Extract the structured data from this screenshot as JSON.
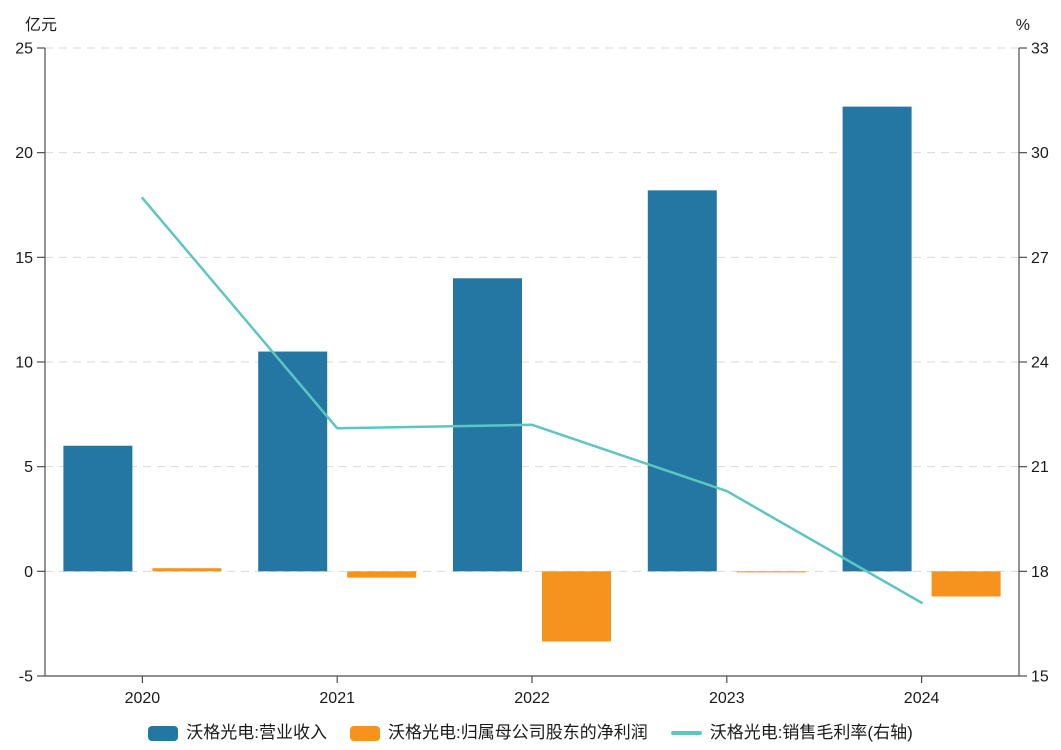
{
  "chart_data": {
    "type": "bar",
    "combo": "bar+line",
    "categories": [
      "2020",
      "2021",
      "2022",
      "2023",
      "2024"
    ],
    "series": [
      {
        "name": "沃格光电:营业收入",
        "type": "bar",
        "axis": "left",
        "color": "#2477A3",
        "values": [
          6.0,
          10.5,
          14.0,
          18.2,
          22.2
        ]
      },
      {
        "name": "沃格光电:归属母公司股东的净利润",
        "type": "bar",
        "axis": "left",
        "color": "#F6921E",
        "values": [
          0.15,
          -0.3,
          -3.35,
          -0.05,
          -1.2
        ]
      },
      {
        "name": "沃格光电:销售毛利率(右轴)",
        "type": "line",
        "axis": "right",
        "color": "#5EC5C1",
        "values": [
          28.7,
          22.1,
          22.2,
          20.3,
          17.1
        ]
      }
    ],
    "left_axis": {
      "unit": "亿元",
      "min": -5,
      "max": 25,
      "step": 5,
      "tick_labels": [
        "-5",
        "0",
        "5",
        "10",
        "15",
        "20",
        "25"
      ]
    },
    "right_axis": {
      "unit": "%",
      "min": 15,
      "max": 33,
      "step": 3,
      "tick_labels": [
        "15",
        "18",
        "21",
        "24",
        "27",
        "30",
        "33"
      ]
    },
    "grid": {
      "on": true,
      "color": "#d9d9d9",
      "dash": "8 6"
    },
    "axis_color": "#4d4d4d",
    "label_color": "#1a1a1a",
    "legend_position": "bottom"
  }
}
